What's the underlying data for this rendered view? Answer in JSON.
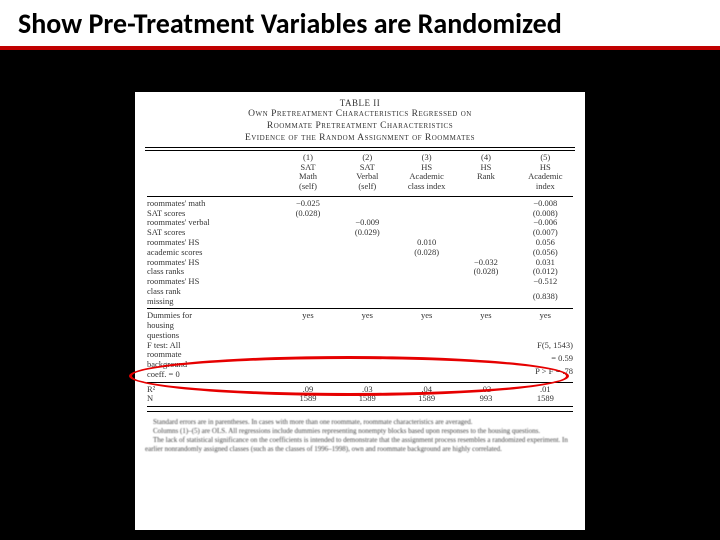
{
  "header": {
    "title": "Show Pre-Treatment Variables are Randomized"
  },
  "table": {
    "title_line1": "TABLE II",
    "title_line2": "Own Pretreatment Characteristics Regressed on",
    "title_line3": "Roommate Pretreatment Characteristics",
    "title_line4": "Evidence of the Random Assignment of Roommates",
    "columns": [
      {
        "num": "(1)",
        "l1": "SAT",
        "l2": "Math",
        "l3": "(self)"
      },
      {
        "num": "(2)",
        "l1": "SAT",
        "l2": "Verbal",
        "l3": "(self)"
      },
      {
        "num": "(3)",
        "l1": "HS",
        "l2": "Academic",
        "l3": "class index"
      },
      {
        "num": "(4)",
        "l1": "HS",
        "l2": "Rank",
        "l3": ""
      },
      {
        "num": "(5)",
        "l1": "HS",
        "l2": "Academic index",
        "l3": ""
      }
    ],
    "rows": [
      {
        "label": "roommates' math\nSAT scores",
        "v": [
          "−0.025",
          "",
          "",
          "",
          "−0.008"
        ],
        "se": [
          "(0.028)",
          "",
          "",
          "",
          "(0.008)"
        ]
      },
      {
        "label": "roommates' verbal\nSAT scores",
        "v": [
          "",
          "−0.009",
          "",
          "",
          "−0.006"
        ],
        "se": [
          "",
          "(0.029)",
          "",
          "",
          "(0.007)"
        ]
      },
      {
        "label": "roommates' HS\nacademic scores",
        "v": [
          "",
          "",
          "0.010",
          "",
          "0.056"
        ],
        "se": [
          "",
          "",
          "(0.028)",
          "",
          "(0.056)"
        ]
      },
      {
        "label": "roommates' HS\nclass ranks",
        "v": [
          "",
          "",
          "",
          "−0.032",
          "0.031"
        ],
        "se": [
          "",
          "",
          "",
          "(0.028)",
          "(0.012)"
        ]
      },
      {
        "label": "roommates' HS\nclass rank\nmissing",
        "v": [
          "",
          "",
          "",
          "",
          "−0.512"
        ],
        "se": [
          "",
          "",
          "",
          "",
          "(0.838)"
        ]
      }
    ],
    "dummies": {
      "label": "Dummies for\nhousing\nquestions",
      "v": [
        "yes",
        "yes",
        "yes",
        "yes",
        "yes"
      ]
    },
    "ftest": {
      "label": "F test: All\nroommate\nbackground\ncoeff. = 0",
      "right1": "F(5, 1543)",
      "right2": "= 0.59",
      "right3": "P > F = .78"
    },
    "r2": {
      "label": "R²",
      "v": [
        ".09",
        ".03",
        ".04",
        ".03",
        ".01"
      ]
    },
    "n": {
      "label": "N",
      "v": [
        "1589",
        "1589",
        "1589",
        "993",
        "1589"
      ]
    },
    "notes": [
      "Standard errors are in parentheses. In cases with more than one roommate, roommate characteristics are averaged.",
      "Columns (1)–(5) are OLS. All regressions include dummies representing nonempty blocks based upon responses to the housing questions.",
      "The lack of statistical significance on the coefficients is intended to demonstrate that the assignment process resembles a randomized experiment. In earlier nonrandomly assigned classes (such as the classes of 1996–1998), own and roommate background are highly correlated."
    ]
  },
  "style": {
    "accent": "#c00000",
    "circle": "#e60000",
    "header_fontsize": 28
  }
}
